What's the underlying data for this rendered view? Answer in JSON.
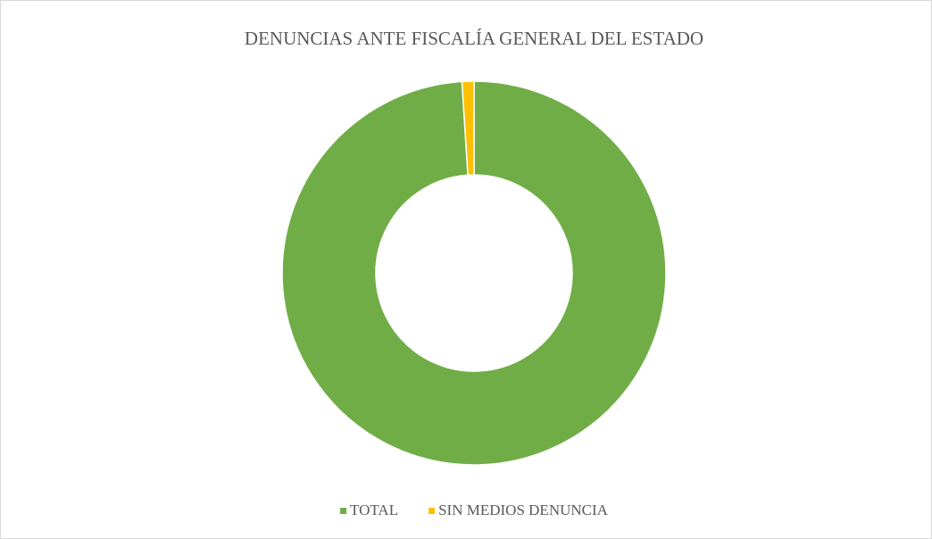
{
  "chart_data": {
    "type": "donut",
    "title": "DENUNCIAS ANTE FISCALÍA GENERAL DEL ESTADO",
    "categories": [
      "TOTAL",
      "SIN MEDIOS DENUNCIA"
    ],
    "values": [
      99,
      1
    ],
    "colors": [
      "#70ad47",
      "#ffc000"
    ],
    "legend": "bottom"
  }
}
